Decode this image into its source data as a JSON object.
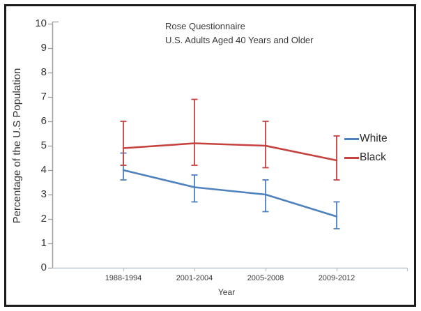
{
  "chart_data": {
    "type": "line",
    "title": "Rose Questionnaire",
    "subtitle": "U.S. Adults Aged 40 Years and Older",
    "xlabel": "Year",
    "ylabel": "Percentage of the U.S Population",
    "categories": [
      "1988-1994",
      "2001-2004",
      "2005-2008",
      "2009-2012"
    ],
    "series": [
      {
        "name": "White",
        "color": "#4f81bd",
        "values": [
          4.0,
          3.3,
          3.0,
          2.1
        ],
        "ci_low": [
          3.6,
          2.7,
          2.3,
          1.6
        ],
        "ci_high": [
          4.7,
          3.8,
          3.6,
          2.7
        ]
      },
      {
        "name": "Black",
        "color": "#c5423f",
        "values": [
          4.9,
          5.1,
          5.0,
          4.4
        ],
        "ci_low": [
          4.2,
          4.2,
          4.1,
          3.6
        ],
        "ci_high": [
          6.0,
          6.9,
          6.0,
          5.4
        ]
      }
    ],
    "ylim": [
      0,
      10
    ],
    "y_ticks": [
      0,
      1,
      2,
      3,
      4,
      5,
      6,
      7,
      8,
      9,
      10
    ],
    "error_bars": true,
    "grid": false,
    "legend_position": "right-middle"
  },
  "style": {
    "background": "#ffffff",
    "border_color": "#1c1c1c",
    "text_color": "#3a3a3a",
    "y_axis_color": "#9aa0a6",
    "x_axis_color": "#b9c6cc"
  }
}
